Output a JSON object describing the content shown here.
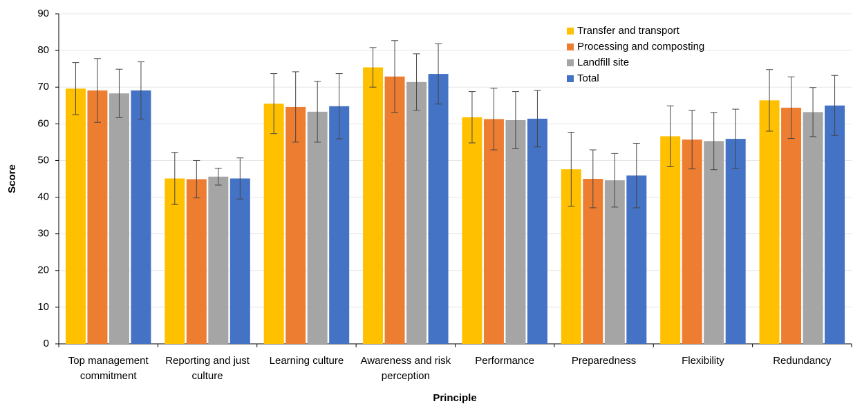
{
  "chart_data": {
    "type": "bar",
    "x_label": "Principle",
    "y_label": "Score",
    "categories": [
      "Top management commitment",
      "Reporting and just culture",
      "Learning culture",
      "Awareness and risk perception",
      "Performance",
      "Preparedness",
      "Flexibility",
      "Redundancy"
    ],
    "series": [
      {
        "name": "Transfer and transport",
        "color": "#ffc000",
        "values": [
          69.6,
          45.1,
          65.5,
          75.4,
          61.8,
          47.6,
          56.6,
          66.4
        ],
        "errors": [
          7.1,
          7.1,
          8.2,
          5.4,
          7.0,
          10.1,
          8.3,
          8.4
        ]
      },
      {
        "name": "Processing and composting",
        "color": "#ed7d31",
        "values": [
          69.1,
          44.9,
          64.6,
          72.9,
          61.3,
          45.0,
          55.7,
          64.4
        ],
        "errors": [
          8.7,
          5.1,
          9.6,
          9.8,
          8.4,
          7.9,
          8.0,
          8.4
        ]
      },
      {
        "name": "Landfill site",
        "color": "#a5a5a5",
        "values": [
          68.3,
          45.6,
          63.3,
          71.4,
          61.0,
          44.6,
          55.3,
          63.2
        ],
        "errors": [
          6.6,
          2.3,
          8.3,
          7.7,
          7.8,
          7.3,
          7.8,
          6.7
        ]
      },
      {
        "name": "Total",
        "color": "#4472c4",
        "values": [
          69.1,
          45.1,
          64.8,
          73.6,
          61.4,
          45.9,
          55.9,
          65.0
        ],
        "errors": [
          7.8,
          5.6,
          8.9,
          8.2,
          7.7,
          8.8,
          8.1,
          8.2
        ]
      }
    ],
    "ylim": [
      0,
      90
    ],
    "yticks": [
      0,
      10,
      20,
      30,
      40,
      50,
      60,
      70,
      80,
      90
    ],
    "grid": true,
    "legend": "upper right"
  }
}
